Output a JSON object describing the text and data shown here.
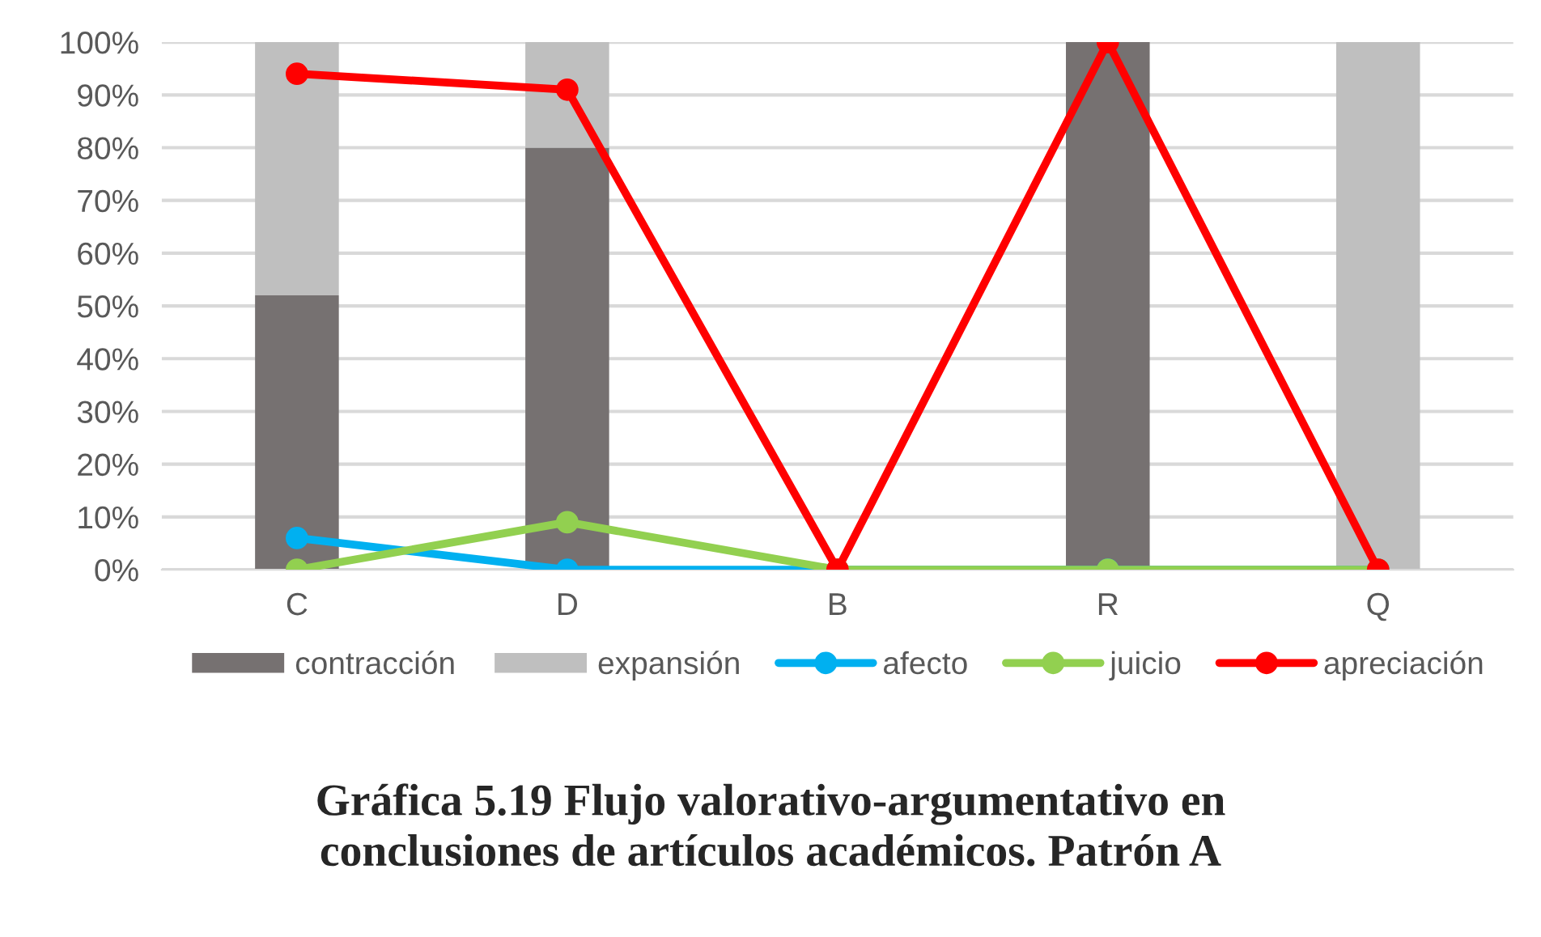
{
  "chart_data": {
    "type": "bar",
    "title": "Gráfica 5.19 Flujo valorativo-argumentativo en\nconclusiones de artículos académicos. Patrón A",
    "categories": [
      "C",
      "D",
      "B",
      "R",
      "Q"
    ],
    "stacked": true,
    "series": [
      {
        "name": "contracción",
        "color": "#767171",
        "values": [
          52,
          80,
          0,
          100,
          0
        ]
      },
      {
        "name": "expansión",
        "color": "#bfbfbf",
        "values": [
          48,
          20,
          0,
          0,
          100
        ]
      },
      {
        "name": "afecto",
        "type": "line",
        "color": "#00b0f0",
        "values": [
          6,
          0,
          0,
          0,
          0
        ]
      },
      {
        "name": "juicio",
        "type": "line",
        "color": "#92d050",
        "values": [
          0,
          9,
          0,
          0,
          0
        ]
      },
      {
        "name": "apreciación",
        "type": "line",
        "color": "#ff0000",
        "values": [
          94,
          91,
          0,
          100,
          0
        ]
      }
    ],
    "marker": "circle",
    "ylim": [
      0,
      100
    ],
    "yticks": [
      {
        "value": 0,
        "label": "0%"
      },
      {
        "value": 10,
        "label": "10%"
      },
      {
        "value": 20,
        "label": "20%"
      },
      {
        "value": 30,
        "label": "30%"
      },
      {
        "value": 40,
        "label": "40%"
      },
      {
        "value": 50,
        "label": "50%"
      },
      {
        "value": 60,
        "label": "60%"
      },
      {
        "value": 70,
        "label": "70%"
      },
      {
        "value": 80,
        "label": "80%"
      },
      {
        "value": 90,
        "label": "90%"
      },
      {
        "value": 100,
        "label": "100%"
      }
    ],
    "grid": "y",
    "legend": "bottom"
  }
}
